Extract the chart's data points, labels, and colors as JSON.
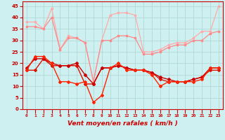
{
  "x": [
    0,
    1,
    2,
    3,
    4,
    5,
    6,
    7,
    8,
    9,
    10,
    11,
    12,
    13,
    14,
    15,
    16,
    17,
    18,
    19,
    20,
    21,
    22,
    23
  ],
  "line_top1": [
    38,
    38,
    35,
    44,
    26,
    32,
    31,
    29,
    12,
    30,
    41,
    42,
    42,
    41,
    25,
    25,
    26,
    28,
    29,
    29,
    31,
    34,
    34,
    45
  ],
  "line_top2": [
    36,
    36,
    35,
    40,
    26,
    31,
    31,
    29,
    12,
    30,
    30,
    32,
    32,
    31,
    24,
    24,
    25,
    27,
    28,
    28,
    30,
    30,
    33,
    34
  ],
  "line_mid1": [
    18,
    22,
    22,
    20,
    19,
    19,
    20,
    15,
    11,
    18,
    18,
    19,
    18,
    17,
    17,
    16,
    14,
    13,
    12,
    12,
    13,
    14,
    18,
    18
  ],
  "line_mid2": [
    17,
    23,
    23,
    20,
    12,
    12,
    11,
    12,
    3,
    6,
    18,
    20,
    17,
    17,
    17,
    15,
    10,
    12,
    12,
    12,
    12,
    13,
    18,
    18
  ],
  "line_flat": [
    17,
    17,
    22,
    19,
    19,
    19,
    19,
    11,
    11,
    18,
    18,
    19,
    18,
    17,
    17,
    16,
    13,
    12,
    12,
    12,
    13,
    14,
    17,
    17
  ],
  "bgcolor": "#cff0f0",
  "grid_color": "#b0d8d8",
  "color_lightest": "#ffaaaa",
  "color_light": "#ff8888",
  "color_dark1": "#ff2200",
  "color_dark2": "#dd1100",
  "color_dark3": "#cc0000",
  "xlabel": "Vent moyen/en rafales ( km/h )",
  "ylim": [
    0,
    47
  ],
  "xlim": [
    -0.5,
    23.5
  ],
  "yticks": [
    0,
    5,
    10,
    15,
    20,
    25,
    30,
    35,
    40,
    45
  ],
  "xticks": [
    0,
    1,
    2,
    3,
    4,
    5,
    6,
    7,
    8,
    9,
    10,
    11,
    12,
    13,
    14,
    15,
    16,
    17,
    18,
    19,
    20,
    21,
    22,
    23
  ]
}
